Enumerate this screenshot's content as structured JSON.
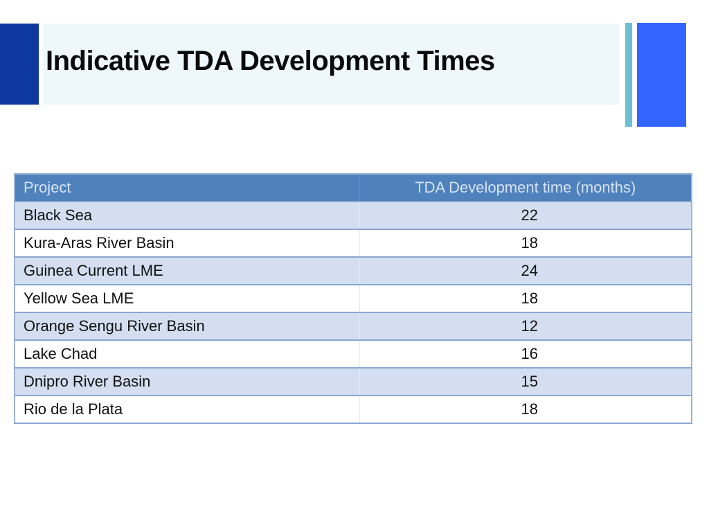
{
  "slide": {
    "title": "Indicative TDA Development Times"
  },
  "colors": {
    "left_bar": "#0e3a9f",
    "title_band": "#eef8fa",
    "accent_thin": "#6bbfd0",
    "accent_thick": "#3366ff",
    "header_fill": "#4f81bd",
    "row_band": "#d3dff0"
  },
  "table": {
    "headers": [
      "Project",
      "TDA Development time (months)"
    ],
    "rows": [
      {
        "project": "Black Sea",
        "months": "22"
      },
      {
        "project": "Kura-Aras River Basin",
        "months": "18"
      },
      {
        "project": "Guinea Current LME",
        "months": "24"
      },
      {
        "project": "Yellow Sea LME",
        "months": "18"
      },
      {
        "project": "Orange Sengu River Basin",
        "months": "12"
      },
      {
        "project": "Lake Chad",
        "months": "16"
      },
      {
        "project": "Dnipro River Basin",
        "months": "15"
      },
      {
        "project": "Rio de la Plata",
        "months": "18"
      }
    ]
  }
}
